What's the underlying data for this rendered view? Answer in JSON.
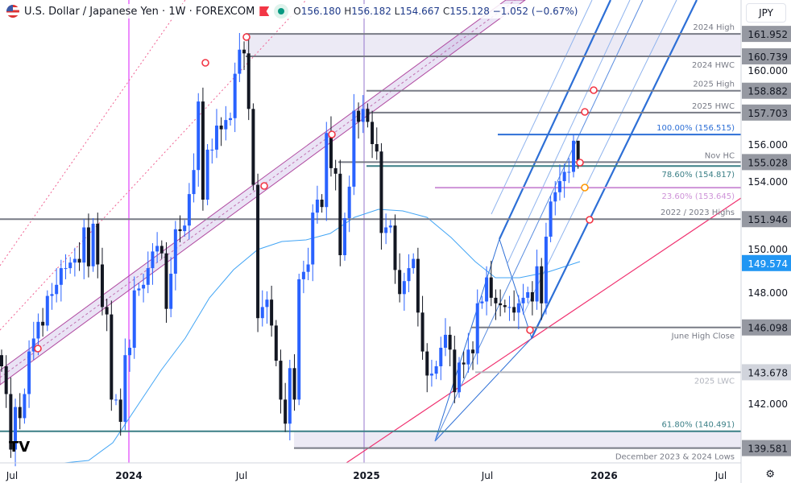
{
  "header": {
    "symbol": "U.S. Dollar / Japanese Yen · 1W · FOREXCOM",
    "open": "156.180",
    "high": "156.182",
    "low": "154.667",
    "close": "155.128",
    "change": "−1.052 (−0.67%)",
    "o_label": "O",
    "h_label": "H",
    "l_label": "L",
    "c_label": "C"
  },
  "currency": "JPY",
  "icons": {
    "flag": "us-flag-icon",
    "alert": "red-flag-icon",
    "status": "market-status-dot-icon",
    "settings": "gear-icon",
    "logo": "tradingview-logo"
  },
  "colors": {
    "up": "#2962ff",
    "down": "#131722",
    "ma": "#42a5f5",
    "channel": "#9c27b0",
    "support": "#f0306f",
    "pitchfork": "#2d6fd6",
    "marker": "#f23645"
  },
  "chart_data": {
    "type": "candlestick",
    "interval": "1W",
    "x_start": "2023-06-26",
    "x_ticks": [
      "Jul",
      "2024",
      "Jul",
      "2025",
      "Jul",
      "2026",
      "Jul"
    ],
    "y_ticks": [
      "160.000",
      "156.000",
      "154.000",
      "150.000",
      "148.000",
      "142.000"
    ],
    "ylim": [
      139.0,
      163.8
    ],
    "closes": [
      144.0,
      142.5,
      139.5,
      141.8,
      141.2,
      142.5,
      144.8,
      145.5,
      146.4,
      146.2,
      147.8,
      147.9,
      148.4,
      149.3,
      149.3,
      149.6,
      149.8,
      149.6,
      151.5,
      149.4,
      151.7,
      149.5,
      147.2,
      146.8,
      142.2,
      142.2,
      141.0,
      144.6,
      145.0,
      148.1,
      148.2,
      148.4,
      149.3,
      150.2,
      150.5,
      150.1,
      147.1,
      149.0,
      151.4,
      151.3,
      151.6,
      153.3,
      154.6,
      158.3,
      153.0,
      155.7,
      155.7,
      157.0,
      156.8,
      157.3,
      157.4,
      159.8,
      161.1,
      160.9,
      157.9,
      153.8,
      146.6,
      147.2,
      147.6,
      146.2,
      144.3,
      142.2,
      140.9,
      143.9,
      142.2,
      148.7,
      149.1,
      149.5,
      152.3,
      153.0,
      152.6,
      156.6,
      154.7,
      154.4,
      150.0,
      152.0,
      153.7,
      157.8,
      157.2,
      157.9,
      157.2,
      156.0,
      155.6,
      151.2,
      151.5,
      151.6,
      149.2,
      147.9,
      148.6,
      149.3,
      149.8,
      146.9,
      144.8,
      143.5,
      143.6,
      144.0,
      145.0,
      145.7,
      144.9,
      142.6,
      144.2,
      144.1,
      144.9,
      144.7,
      147.4,
      147.5,
      148.8,
      147.7,
      147.4,
      147.3,
      147.2,
      147.2,
      146.9,
      147.4,
      147.7,
      148.0,
      147.5,
      149.4,
      147.4,
      151.0,
      152.9,
      153.4,
      154.0,
      154.5,
      154.5,
      156.18
    ],
    "last_candle": {
      "open": 156.18,
      "high": 156.182,
      "low": 154.667,
      "close": 155.128
    },
    "moving_average_value": "149.574",
    "levels": [
      {
        "price": 161.952,
        "label": "2024 High",
        "tag": "161.952",
        "color": "#787b86"
      },
      {
        "price": 160.739,
        "label": "2024 HWC",
        "tag": "160.739",
        "color": "#787b86"
      },
      {
        "price": 158.882,
        "label": "2025 High",
        "tag": "158.882",
        "color": "#787b86"
      },
      {
        "price": 157.703,
        "label": "2025 HWC",
        "tag": "157.703",
        "color": "#787b86"
      },
      {
        "price": 156.515,
        "label": "100.00% (156.515)",
        "tag": "",
        "color": "#2d6fd6"
      },
      {
        "price": 155.028,
        "label": "Nov HC",
        "tag": "155.028",
        "color": "#787b86"
      },
      {
        "price": 154.817,
        "label": "78.60% (154.817)",
        "tag": "",
        "color": "#3b7f86"
      },
      {
        "price": 153.645,
        "label": "23.60% (153.645)",
        "tag": "",
        "color": "#ce93d8"
      },
      {
        "price": 151.946,
        "label": "2022 / 2023 Highs",
        "tag": "151.946",
        "color": "#787b86"
      },
      {
        "price": 146.098,
        "label": "June High Close",
        "tag": "146.098",
        "color": "#787b86"
      },
      {
        "price": 143.678,
        "label": "2025 LWC",
        "tag": "143.678",
        "color": "#b2b5be"
      },
      {
        "price": 140.491,
        "label": "61.80% (140.491)",
        "tag": "",
        "color": "#3b7f86"
      },
      {
        "price": 139.581,
        "label": "December 2023 & 2024 Lows",
        "tag": "139.581",
        "color": "#787b86"
      }
    ]
  }
}
